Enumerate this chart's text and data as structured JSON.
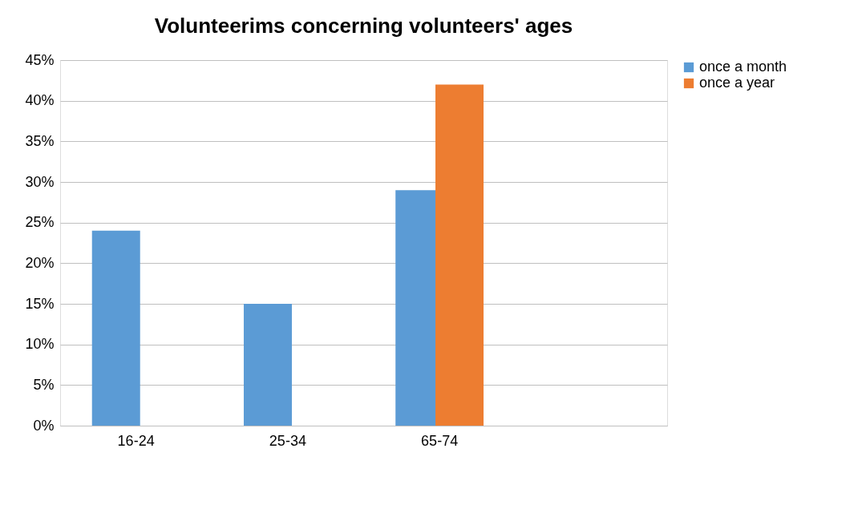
{
  "chart_data": {
    "type": "bar",
    "title": "Volunteerims concerning volunteers' ages",
    "categories": [
      "16-24",
      "25-34",
      "65-74",
      null
    ],
    "series": [
      {
        "name": "once a month",
        "color": "#5b9bd5",
        "values": [
          24,
          15,
          29,
          null
        ]
      },
      {
        "name": "once a year",
        "color": "#ed7d31",
        "values": [
          null,
          null,
          42,
          null
        ]
      }
    ],
    "ylim": [
      0,
      45
    ],
    "yticks": [
      {
        "value": 0,
        "label": "0%"
      },
      {
        "value": 5,
        "label": "5%"
      },
      {
        "value": 10,
        "label": "10%"
      },
      {
        "value": 15,
        "label": "15%"
      },
      {
        "value": 20,
        "label": "20%"
      },
      {
        "value": 25,
        "label": "25%"
      },
      {
        "value": 30,
        "label": "30%"
      },
      {
        "value": 35,
        "label": "35%"
      },
      {
        "value": 40,
        "label": "40%"
      },
      {
        "value": 45,
        "label": "45%"
      }
    ],
    "grid": "y",
    "legend": "right"
  }
}
